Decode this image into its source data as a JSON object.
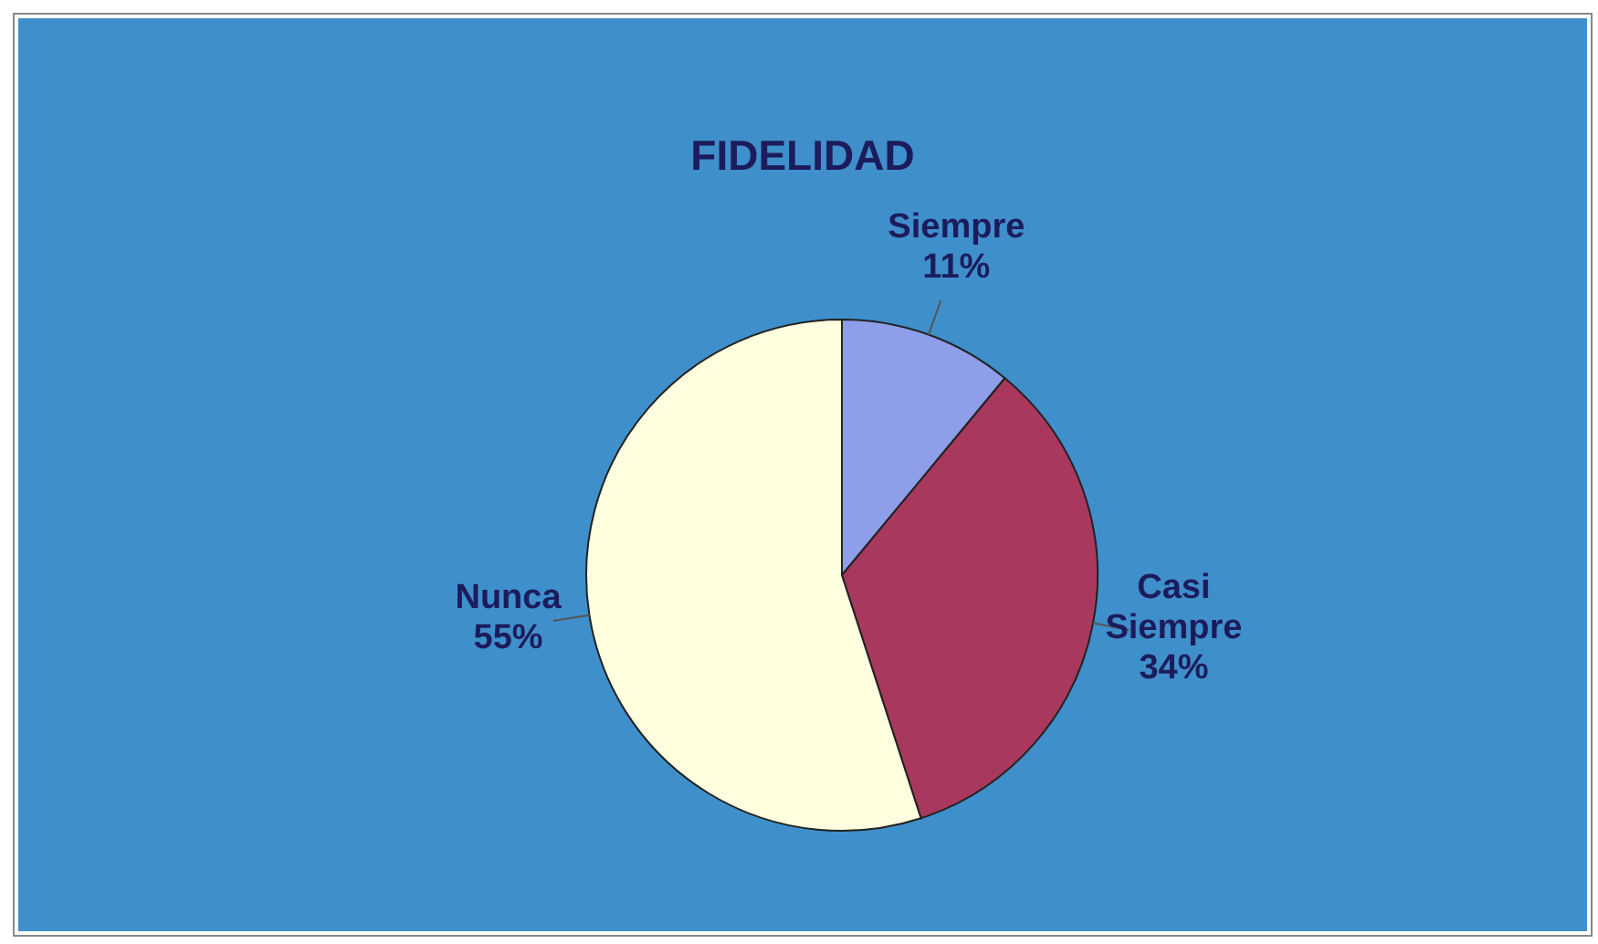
{
  "chart_data": {
    "type": "pie",
    "title": "FIDELIDAD",
    "categories": [
      "Siempre",
      "Casi Siempre",
      "Nunca"
    ],
    "values": [
      11,
      34,
      55
    ],
    "colors": [
      "#8e9ee8",
      "#a8385e",
      "#ffffe0"
    ],
    "value_labels": [
      "11%",
      "34%",
      "55%"
    ],
    "legend": false
  }
}
